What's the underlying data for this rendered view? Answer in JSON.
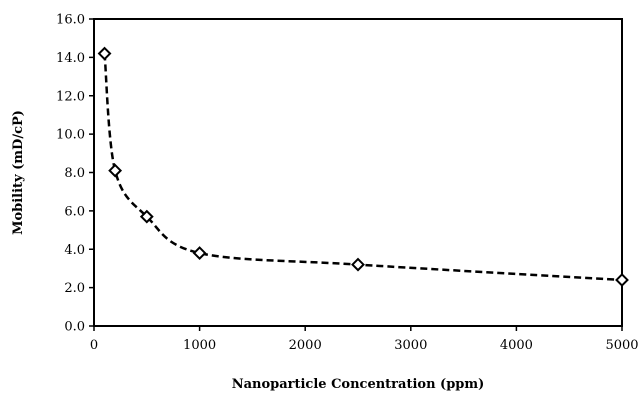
{
  "chart_data": {
    "type": "scatter",
    "title": "",
    "xlabel": "Nanoparticle Concentration (ppm)",
    "ylabel": "Mobility (mD/cP)",
    "xlim": [
      0,
      5000
    ],
    "ylim": [
      0,
      16
    ],
    "x_ticks": [
      "0",
      "1000",
      "2000",
      "3000",
      "4000",
      "5000"
    ],
    "y_ticks": [
      "0.0",
      "2.0",
      "4.0",
      "6.0",
      "8.0",
      "10.0",
      "12.0",
      "14.0",
      "16.0"
    ],
    "grid": false,
    "legend": "none",
    "trendline": "dashed smooth curve",
    "marker": "diamond",
    "series": [
      {
        "x": [
          100,
          200,
          500,
          1000,
          2500,
          5000
        ],
        "y": [
          14.2,
          8.1,
          5.7,
          3.8,
          3.2,
          2.4
        ]
      }
    ],
    "colors": {
      "marker": "#000000",
      "line": "#000000"
    }
  }
}
